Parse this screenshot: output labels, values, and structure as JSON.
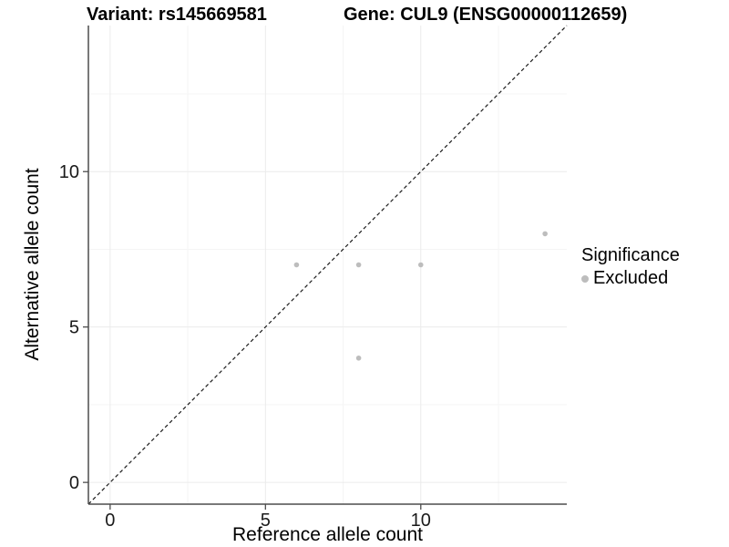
{
  "chart_data": {
    "type": "scatter",
    "title_left": "Variant: rs145669581",
    "title_right": "Gene: CUL9 (ENSG00000112659)",
    "xlabel": "Reference allele count",
    "ylabel": "Alternative allele count",
    "xlim": [
      -0.7,
      14.7
    ],
    "ylim": [
      -0.7,
      14.7
    ],
    "x_major_ticks": [
      0,
      5,
      10
    ],
    "y_major_ticks": [
      0,
      5,
      10
    ],
    "x_minor_ticks": [
      2.5,
      7.5,
      12.5
    ],
    "y_minor_ticks": [
      2.5,
      7.5,
      12.5
    ],
    "grid": true,
    "identity_line": {
      "style": "dashed",
      "from": -0.7,
      "to": 14.7,
      "color": "#1a1a1a"
    },
    "series": [
      {
        "name": "Excluded",
        "color": "#bdbdbd",
        "points": [
          {
            "x": 6,
            "y": 7
          },
          {
            "x": 8,
            "y": 7
          },
          {
            "x": 10,
            "y": 7
          },
          {
            "x": 14,
            "y": 8
          },
          {
            "x": 8,
            "y": 4
          }
        ]
      }
    ],
    "legend": {
      "title": "Significance",
      "position": "right",
      "items": [
        {
          "label": "Excluded",
          "color": "#bdbdbd"
        }
      ]
    },
    "colors": {
      "grid_major": "#ebebeb",
      "grid_minor": "#f5f5f5",
      "axis_line": "#4d4d4d",
      "tick_label": "#1a1a1a",
      "background": "#ffffff"
    }
  }
}
